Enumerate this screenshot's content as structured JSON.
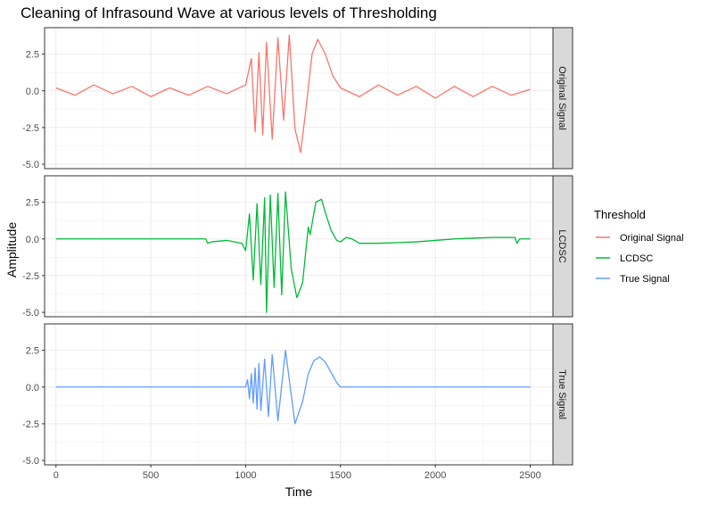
{
  "chart_data": {
    "type": "line",
    "title": "Cleaning of Infrasound Wave at various levels of Thresholding",
    "xlabel": "Time",
    "ylabel": "Amplitude",
    "xlim": [
      -60,
      2620
    ],
    "ylim": [
      -5.3,
      4.3
    ],
    "x_ticks": [
      0,
      500,
      1000,
      1500,
      2000,
      2500
    ],
    "y_ticks": [
      -5.0,
      -2.5,
      0.0,
      2.5
    ],
    "y_tick_labels": [
      "-5.0",
      "-2.5",
      "0.0",
      "2.5"
    ],
    "x_tick_labels": [
      "0",
      "500",
      "1000",
      "1500",
      "2000",
      "2500"
    ],
    "grid": true,
    "facets": [
      "Original Signal",
      "LCDSC",
      "True Signal"
    ],
    "legend": {
      "title": "Threshold",
      "position": "right",
      "entries": [
        {
          "label": "Original Signal",
          "color": "#F8766D"
        },
        {
          "label": "LCDSC",
          "color": "#00BA38"
        },
        {
          "label": "True Signal",
          "color": "#619CFF"
        }
      ]
    },
    "series": [
      {
        "name": "Original Signal",
        "color": "#F8766D",
        "points": [
          [
            0,
            0.2
          ],
          [
            100,
            -0.3
          ],
          [
            200,
            0.4
          ],
          [
            300,
            -0.2
          ],
          [
            400,
            0.3
          ],
          [
            500,
            -0.4
          ],
          [
            600,
            0.2
          ],
          [
            700,
            -0.3
          ],
          [
            800,
            0.3
          ],
          [
            900,
            -0.2
          ],
          [
            1000,
            0.4
          ],
          [
            1030,
            2.2
          ],
          [
            1050,
            -2.8
          ],
          [
            1070,
            2.6
          ],
          [
            1090,
            -3.0
          ],
          [
            1110,
            3.3
          ],
          [
            1140,
            -3.3
          ],
          [
            1170,
            3.6
          ],
          [
            1200,
            -2.0
          ],
          [
            1230,
            3.8
          ],
          [
            1260,
            -2.6
          ],
          [
            1290,
            -4.2
          ],
          [
            1320,
            -1.0
          ],
          [
            1350,
            2.5
          ],
          [
            1380,
            3.5
          ],
          [
            1420,
            2.5
          ],
          [
            1460,
            1.0
          ],
          [
            1500,
            0.2
          ],
          [
            1600,
            -0.4
          ],
          [
            1700,
            0.4
          ],
          [
            1800,
            -0.3
          ],
          [
            1900,
            0.3
          ],
          [
            2000,
            -0.5
          ],
          [
            2100,
            0.3
          ],
          [
            2200,
            -0.4
          ],
          [
            2300,
            0.3
          ],
          [
            2400,
            -0.3
          ],
          [
            2500,
            0.1
          ]
        ]
      },
      {
        "name": "LCDSC",
        "color": "#00BA38",
        "points": [
          [
            0,
            0
          ],
          [
            790,
            0
          ],
          [
            800,
            -0.3
          ],
          [
            820,
            -0.2
          ],
          [
            900,
            -0.1
          ],
          [
            980,
            -0.3
          ],
          [
            1000,
            -0.8
          ],
          [
            1020,
            1.7
          ],
          [
            1040,
            -2.8
          ],
          [
            1060,
            2.4
          ],
          [
            1080,
            -3.1
          ],
          [
            1100,
            2.8
          ],
          [
            1110,
            -5.0
          ],
          [
            1130,
            3.0
          ],
          [
            1150,
            -3.3
          ],
          [
            1170,
            3.1
          ],
          [
            1190,
            -3.8
          ],
          [
            1210,
            3.2
          ],
          [
            1240,
            -2.0
          ],
          [
            1270,
            -4.0
          ],
          [
            1300,
            -3.0
          ],
          [
            1330,
            0.8
          ],
          [
            1340,
            0.3
          ],
          [
            1370,
            2.5
          ],
          [
            1400,
            2.7
          ],
          [
            1420,
            1.8
          ],
          [
            1450,
            0.6
          ],
          [
            1480,
            -0.1
          ],
          [
            1500,
            -0.2
          ],
          [
            1530,
            0.1
          ],
          [
            1560,
            0
          ],
          [
            1600,
            -0.3
          ],
          [
            1700,
            -0.3
          ],
          [
            1800,
            -0.25
          ],
          [
            1900,
            -0.2
          ],
          [
            2000,
            -0.1
          ],
          [
            2100,
            0
          ],
          [
            2200,
            0.05
          ],
          [
            2300,
            0.1
          ],
          [
            2420,
            0.1
          ],
          [
            2430,
            -0.3
          ],
          [
            2445,
            0
          ],
          [
            2500,
            0
          ]
        ]
      },
      {
        "name": "True Signal",
        "color": "#619CFF",
        "points": [
          [
            0,
            0
          ],
          [
            980,
            0
          ],
          [
            1000,
            0
          ],
          [
            1010,
            0.5
          ],
          [
            1020,
            -0.8
          ],
          [
            1030,
            0.9
          ],
          [
            1040,
            -1.1
          ],
          [
            1050,
            1.3
          ],
          [
            1060,
            -1.5
          ],
          [
            1070,
            1.6
          ],
          [
            1080,
            -1.6
          ],
          [
            1100,
            1.9
          ],
          [
            1120,
            -2.0
          ],
          [
            1140,
            2.2
          ],
          [
            1170,
            -2.3
          ],
          [
            1210,
            2.5
          ],
          [
            1260,
            -2.5
          ],
          [
            1300,
            -1.0
          ],
          [
            1330,
            0.9
          ],
          [
            1360,
            1.8
          ],
          [
            1390,
            2.05
          ],
          [
            1420,
            1.7
          ],
          [
            1450,
            1.0
          ],
          [
            1480,
            0.3
          ],
          [
            1500,
            0
          ],
          [
            1600,
            0
          ],
          [
            1800,
            0
          ],
          [
            2000,
            0
          ],
          [
            2200,
            0
          ],
          [
            2400,
            0
          ],
          [
            2500,
            0
          ]
        ]
      }
    ]
  }
}
